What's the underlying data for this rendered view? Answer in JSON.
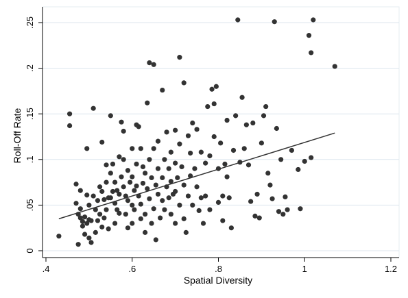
{
  "chart_data": {
    "type": "scatter",
    "title": "",
    "xlabel": "Spatial Diversity",
    "ylabel": "Roll-Off Rate",
    "xlim": [
      0.4,
      1.2
    ],
    "ylim": [
      0,
      0.25
    ],
    "xticks": [
      ".4",
      ".6",
      ".8",
      "1",
      "1.2"
    ],
    "yticks": [
      "0",
      ".05",
      ".1",
      ".15",
      ".2",
      ".25"
    ],
    "grid": "horizontal",
    "legend": "none",
    "colors": {
      "points": "#333333",
      "fit_line": "#333333",
      "background": "#ffffff",
      "grid": "#dce6ee"
    },
    "fit_line": {
      "x": [
        0.43,
        1.07
      ],
      "y": [
        0.035,
        0.129
      ]
    },
    "points": [
      [
        0.43,
        0.016
      ],
      [
        0.455,
        0.15
      ],
      [
        0.455,
        0.137
      ],
      [
        0.47,
        0.073
      ],
      [
        0.47,
        0.052
      ],
      [
        0.475,
        0.04
      ],
      [
        0.475,
        0.007
      ],
      [
        0.48,
        0.066
      ],
      [
        0.48,
        0.046
      ],
      [
        0.48,
        0.036
      ],
      [
        0.485,
        0.032
      ],
      [
        0.485,
        0.027
      ],
      [
        0.49,
        0.018
      ],
      [
        0.49,
        0.037
      ],
      [
        0.495,
        0.03
      ],
      [
        0.495,
        0.112
      ],
      [
        0.495,
        0.061
      ],
      [
        0.5,
        0.05
      ],
      [
        0.5,
        0.034
      ],
      [
        0.5,
        0.014
      ],
      [
        0.505,
        0.033
      ],
      [
        0.505,
        0.009
      ],
      [
        0.51,
        0.156
      ],
      [
        0.51,
        0.06
      ],
      [
        0.515,
        0.045
      ],
      [
        0.515,
        0.02
      ],
      [
        0.52,
        0.055
      ],
      [
        0.52,
        0.033
      ],
      [
        0.525,
        0.07
      ],
      [
        0.525,
        0.04
      ],
      [
        0.53,
        0.119
      ],
      [
        0.53,
        0.065
      ],
      [
        0.53,
        0.026
      ],
      [
        0.535,
        0.056
      ],
      [
        0.535,
        0.036
      ],
      [
        0.54,
        0.094
      ],
      [
        0.54,
        0.075
      ],
      [
        0.54,
        0.045
      ],
      [
        0.545,
        0.058
      ],
      [
        0.545,
        0.024
      ],
      [
        0.55,
        0.148
      ],
      [
        0.55,
        0.085
      ],
      [
        0.55,
        0.058
      ],
      [
        0.555,
        0.095
      ],
      [
        0.555,
        0.065
      ],
      [
        0.56,
        0.075
      ],
      [
        0.56,
        0.052
      ],
      [
        0.56,
        0.03
      ],
      [
        0.565,
        0.066
      ],
      [
        0.565,
        0.045
      ],
      [
        0.57,
        0.103
      ],
      [
        0.57,
        0.062
      ],
      [
        0.57,
        0.041
      ],
      [
        0.575,
        0.081
      ],
      [
        0.575,
        0.141
      ],
      [
        0.58,
        0.131
      ],
      [
        0.58,
        0.1
      ],
      [
        0.58,
        0.07
      ],
      [
        0.585,
        0.06
      ],
      [
        0.585,
        0.04
      ],
      [
        0.59,
        0.088
      ],
      [
        0.59,
        0.055
      ],
      [
        0.59,
        0.025
      ],
      [
        0.595,
        0.075
      ],
      [
        0.6,
        0.112
      ],
      [
        0.6,
        0.081
      ],
      [
        0.6,
        0.05
      ],
      [
        0.6,
        0.03
      ],
      [
        0.605,
        0.066
      ],
      [
        0.605,
        0.045
      ],
      [
        0.61,
        0.138
      ],
      [
        0.61,
        0.095
      ],
      [
        0.61,
        0.071
      ],
      [
        0.615,
        0.136
      ],
      [
        0.615,
        0.06
      ],
      [
        0.62,
        0.112
      ],
      [
        0.62,
        0.051
      ],
      [
        0.62,
        0.035
      ],
      [
        0.625,
        0.092
      ],
      [
        0.625,
        0.074
      ],
      [
        0.63,
        0.085
      ],
      [
        0.63,
        0.04
      ],
      [
        0.63,
        0.02
      ],
      [
        0.635,
        0.162
      ],
      [
        0.635,
        0.068
      ],
      [
        0.64,
        0.206
      ],
      [
        0.64,
        0.1
      ],
      [
        0.64,
        0.057
      ],
      [
        0.645,
        0.08
      ],
      [
        0.645,
        0.03
      ],
      [
        0.65,
        0.204
      ],
      [
        0.65,
        0.112
      ],
      [
        0.65,
        0.046
      ],
      [
        0.655,
        0.072
      ],
      [
        0.655,
        0.012
      ],
      [
        0.66,
        0.12
      ],
      [
        0.66,
        0.09
      ],
      [
        0.66,
        0.062
      ],
      [
        0.665,
        0.036
      ],
      [
        0.67,
        0.176
      ],
      [
        0.67,
        0.08
      ],
      [
        0.67,
        0.055
      ],
      [
        0.675,
        0.1
      ],
      [
        0.675,
        0.045
      ],
      [
        0.68,
        0.13
      ],
      [
        0.68,
        0.07
      ],
      [
        0.685,
        0.09
      ],
      [
        0.685,
        0.058
      ],
      [
        0.69,
        0.108
      ],
      [
        0.69,
        0.076
      ],
      [
        0.69,
        0.04
      ],
      [
        0.695,
        0.062
      ],
      [
        0.7,
        0.132
      ],
      [
        0.7,
        0.096
      ],
      [
        0.7,
        0.065
      ],
      [
        0.7,
        0.03
      ],
      [
        0.705,
        0.08
      ],
      [
        0.71,
        0.212
      ],
      [
        0.71,
        0.117
      ],
      [
        0.71,
        0.05
      ],
      [
        0.715,
        0.092
      ],
      [
        0.72,
        0.184
      ],
      [
        0.72,
        0.072
      ],
      [
        0.72,
        0.035
      ],
      [
        0.725,
        0.02
      ],
      [
        0.73,
        0.126
      ],
      [
        0.73,
        0.06
      ],
      [
        0.735,
        0.107
      ],
      [
        0.735,
        0.082
      ],
      [
        0.74,
        0.14
      ],
      [
        0.74,
        0.05
      ],
      [
        0.745,
        0.09
      ],
      [
        0.75,
        0.133
      ],
      [
        0.75,
        0.07
      ],
      [
        0.755,
        0.044
      ],
      [
        0.76,
        0.108
      ],
      [
        0.76,
        0.058
      ],
      [
        0.765,
        0.03
      ],
      [
        0.77,
        0.096
      ],
      [
        0.77,
        0.06
      ],
      [
        0.775,
        0.158
      ],
      [
        0.78,
        0.104
      ],
      [
        0.78,
        0.045
      ],
      [
        0.785,
        0.177
      ],
      [
        0.79,
        0.161
      ],
      [
        0.79,
        0.125
      ],
      [
        0.795,
        0.18
      ],
      [
        0.8,
        0.09
      ],
      [
        0.8,
        0.053
      ],
      [
        0.805,
        0.118
      ],
      [
        0.81,
        0.06
      ],
      [
        0.81,
        0.033
      ],
      [
        0.815,
        0.095
      ],
      [
        0.82,
        0.143
      ],
      [
        0.82,
        0.081
      ],
      [
        0.825,
        0.058
      ],
      [
        0.83,
        0.025
      ],
      [
        0.835,
        0.11
      ],
      [
        0.84,
        0.148
      ],
      [
        0.845,
        0.253
      ],
      [
        0.85,
        0.097
      ],
      [
        0.855,
        0.168
      ],
      [
        0.86,
        0.112
      ],
      [
        0.865,
        0.138
      ],
      [
        0.87,
        0.094
      ],
      [
        0.875,
        0.054
      ],
      [
        0.88,
        0.14
      ],
      [
        0.885,
        0.038
      ],
      [
        0.89,
        0.062
      ],
      [
        0.895,
        0.036
      ],
      [
        0.9,
        0.118
      ],
      [
        0.905,
        0.148
      ],
      [
        0.91,
        0.158
      ],
      [
        0.915,
        0.085
      ],
      [
        0.92,
        0.072
      ],
      [
        0.925,
        0.057
      ],
      [
        0.93,
        0.251
      ],
      [
        0.935,
        0.134
      ],
      [
        0.94,
        0.043
      ],
      [
        0.945,
        0.1
      ],
      [
        0.95,
        0.04
      ],
      [
        0.955,
        0.059
      ],
      [
        0.96,
        0.045
      ],
      [
        0.97,
        0.11
      ],
      [
        0.985,
        0.089
      ],
      [
        0.99,
        0.046
      ],
      [
        1.0,
        0.098
      ],
      [
        1.01,
        0.236
      ],
      [
        1.015,
        0.217
      ],
      [
        1.015,
        0.102
      ],
      [
        1.02,
        0.253
      ],
      [
        1.07,
        0.202
      ]
    ]
  }
}
